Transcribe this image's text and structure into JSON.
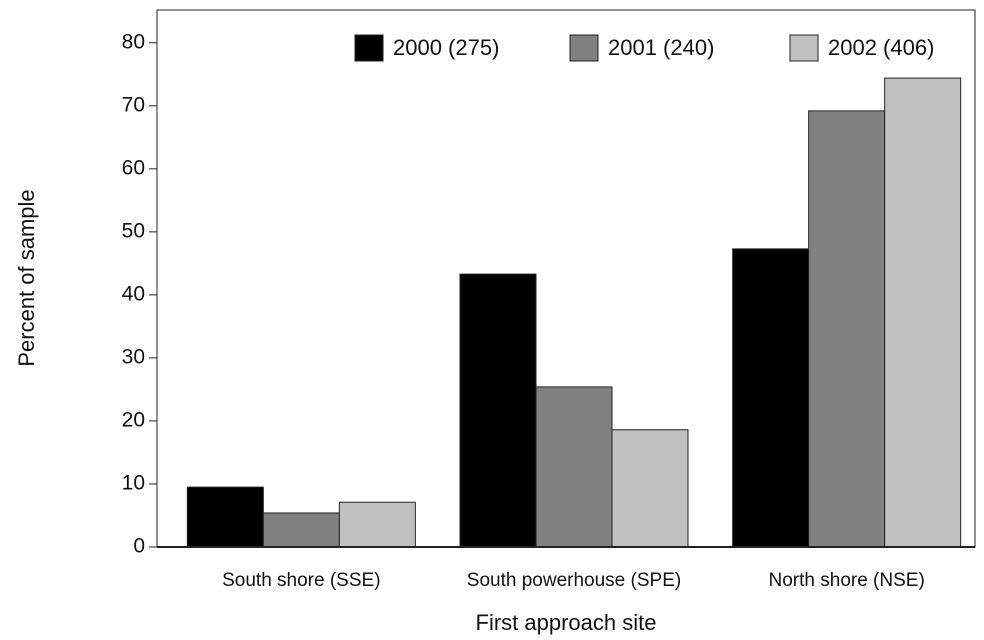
{
  "chart_data": {
    "type": "bar",
    "x_label": "First approach site",
    "y_label": "Percent of sample",
    "categories": [
      "South shore (SSE)",
      "South powerhouse (SPE)",
      "North shore (NSE)"
    ],
    "series": [
      {
        "name": "2000 (275)",
        "color": "#000000",
        "values": [
          9.5,
          43.3,
          47.3
        ]
      },
      {
        "name": "2001 (240)",
        "color": "#808080",
        "values": [
          5.4,
          25.4,
          69.2
        ]
      },
      {
        "name": "2002 (406)",
        "color": "#c0c0c0",
        "values": [
          7.1,
          18.6,
          74.4
        ]
      }
    ],
    "ylim": [
      0,
      85.2
    ],
    "yticks": [
      0,
      10,
      20,
      30,
      40,
      50,
      60,
      70,
      80
    ],
    "legend": "upper right"
  }
}
